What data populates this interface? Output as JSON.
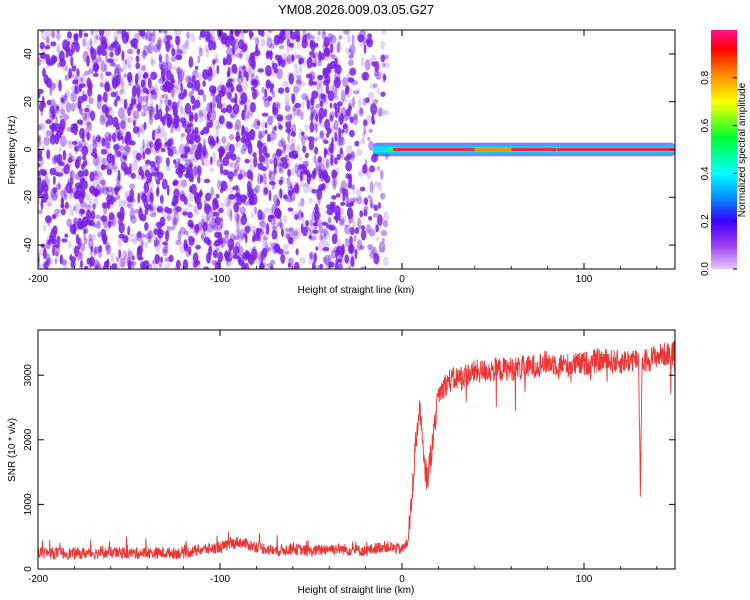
{
  "title": "YM08.2026.009.03.05.G27",
  "chart_data": [
    {
      "type": "heatmap",
      "xlabel": "Height of straight line (km)",
      "ylabel": "Frequency (Hz)",
      "xlim": [
        -200,
        150
      ],
      "ylim": [
        -50,
        50
      ],
      "xticks": [
        -200,
        -100,
        0,
        100
      ],
      "yticks": [
        -40,
        -20,
        0,
        20,
        40
      ],
      "colorbar": {
        "label": "Normalized spectral amplitude",
        "range": [
          0,
          1
        ],
        "ticks": [
          "0.0",
          "0.2",
          "0.4",
          "0.6",
          "0.8"
        ]
      },
      "noise_region": {
        "x": [
          -200,
          -8
        ],
        "y": [
          -50,
          50
        ],
        "color": "#7a1fe6"
      },
      "signal_band": {
        "x": [
          -16,
          150
        ],
        "center_frequency_hz": 0,
        "halfwidth_hz": 2,
        "segments": [
          {
            "x": [
              -16,
              -8
            ],
            "level": 0.45
          },
          {
            "x": [
              -5,
              40
            ],
            "level": 0.9
          },
          {
            "x": [
              40,
              60
            ],
            "level": 0.75
          },
          {
            "x": [
              60,
              85
            ],
            "level": 0.95
          },
          {
            "x": [
              85,
              150
            ],
            "level": 0.9
          }
        ]
      }
    },
    {
      "type": "line",
      "xlabel": "Height of straight line (km)",
      "ylabel": "SNR (10 * v/v)",
      "xlim": [
        -200,
        150
      ],
      "ylim": [
        0,
        3700
      ],
      "xticks": [
        -200,
        -100,
        0,
        100
      ],
      "yticks": [
        0,
        1000,
        2000,
        3000
      ],
      "color": "#ee3333",
      "series": [
        {
          "x": [
            -200,
            -180,
            -160,
            -140,
            -120,
            -110,
            -100,
            -90,
            -85,
            -70,
            -60,
            -50,
            -40,
            -30,
            -20,
            -10,
            -5,
            0,
            3,
            5,
            7,
            9,
            10,
            12,
            14,
            16,
            20,
            25,
            30,
            40,
            50,
            60,
            70,
            80,
            90,
            100,
            110,
            120,
            130,
            131,
            132,
            140,
            150
          ],
          "y": [
            250,
            240,
            250,
            245,
            250,
            300,
            330,
            420,
            380,
            280,
            310,
            270,
            320,
            300,
            280,
            350,
            330,
            300,
            400,
            900,
            1800,
            2300,
            2500,
            1600,
            1400,
            1800,
            2700,
            2900,
            2950,
            3050,
            3080,
            3100,
            3120,
            3200,
            3150,
            3180,
            3230,
            3200,
            3260,
            1100,
            3200,
            3300,
            3350
          ]
        }
      ]
    }
  ]
}
